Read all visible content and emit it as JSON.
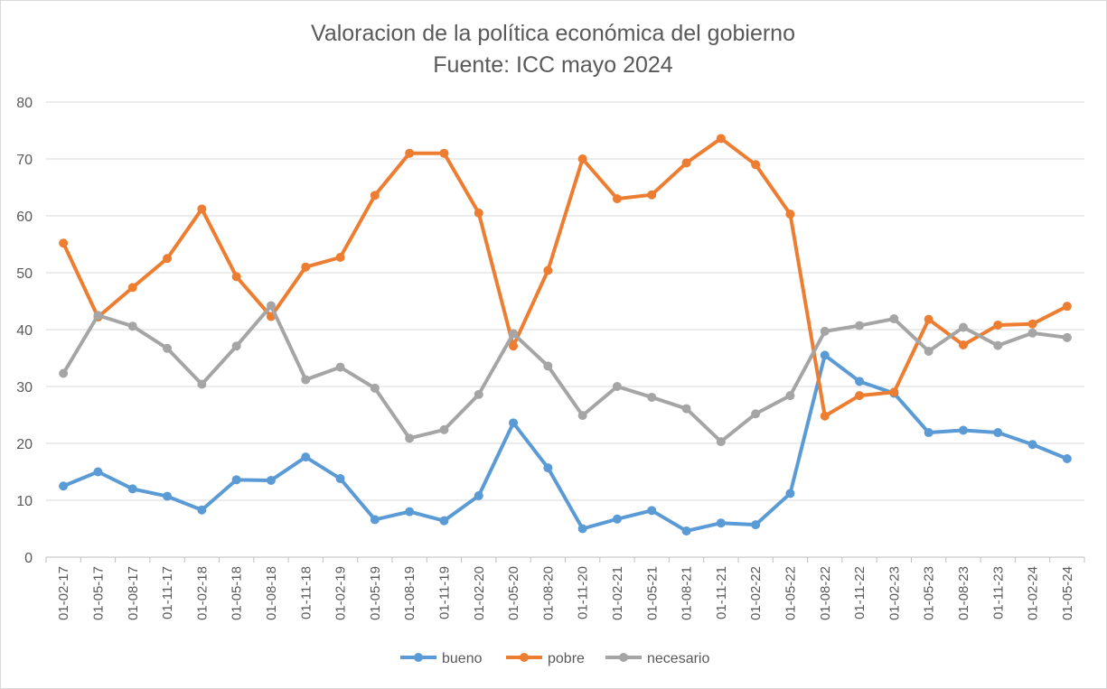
{
  "chart_data": {
    "type": "line",
    "title": "Valoracion de la política económica del gobierno",
    "subtitle": "Fuente: ICC mayo 2024",
    "xlabel": "",
    "ylabel": "",
    "ylim": [
      0,
      80
    ],
    "yticks": [
      "0",
      "10",
      "20",
      "30",
      "40",
      "50",
      "60",
      "70",
      "80"
    ],
    "grid": true,
    "legend_position": "bottom",
    "categories": [
      "01-02-17",
      "01-05-17",
      "01-08-17",
      "01-11-17",
      "01-02-18",
      "01-05-18",
      "01-08-18",
      "01-11-18",
      "01-02-19",
      "01-05-19",
      "01-08-19",
      "01-11-19",
      "01-02-20",
      "01-05-20",
      "01-08-20",
      "01-11-20",
      "01-02-21",
      "01-05-21",
      "01-08-21",
      "01-11-21",
      "01-02-22",
      "01-05-22",
      "01-08-22",
      "01-11-22",
      "01-02-23",
      "01-05-23",
      "01-08-23",
      "01-11-23",
      "01-02-24",
      "01-05-24"
    ],
    "series": [
      {
        "name": "bueno",
        "color": "#5b9bd5",
        "values": [
          12.5,
          15.0,
          12.0,
          10.7,
          8.3,
          13.6,
          13.5,
          17.6,
          13.8,
          6.6,
          8.0,
          6.4,
          10.8,
          23.6,
          15.7,
          5.0,
          6.7,
          8.2,
          4.6,
          6.0,
          5.7,
          11.2,
          35.5,
          30.9,
          28.8,
          21.9,
          22.3,
          21.9,
          19.8,
          17.3
        ]
      },
      {
        "name": "pobre",
        "color": "#ed7d31",
        "values": [
          55.2,
          42.2,
          47.4,
          52.5,
          61.2,
          49.3,
          42.3,
          51.0,
          52.7,
          63.6,
          71.0,
          71.0,
          60.5,
          37.1,
          50.4,
          70.0,
          63.0,
          63.7,
          69.3,
          73.6,
          69.0,
          60.3,
          24.8,
          28.4,
          29.0,
          41.8,
          37.3,
          40.8,
          41.0,
          44.1
        ]
      },
      {
        "name": "necesario",
        "color": "#a5a5a5",
        "values": [
          32.3,
          42.5,
          40.6,
          36.7,
          30.4,
          37.1,
          44.2,
          31.2,
          33.4,
          29.7,
          20.9,
          22.4,
          28.6,
          39.3,
          33.6,
          24.9,
          30.0,
          28.1,
          26.1,
          20.3,
          25.2,
          28.4,
          39.7,
          40.7,
          41.9,
          36.2,
          40.4,
          37.2,
          39.4,
          38.6
        ]
      }
    ]
  }
}
